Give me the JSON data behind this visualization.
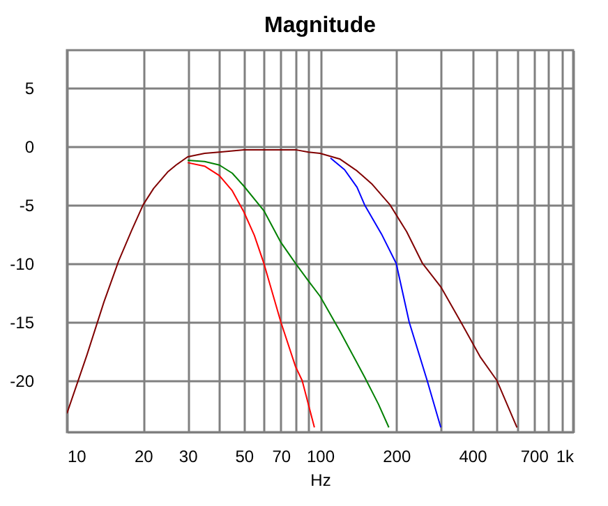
{
  "chart_data": {
    "type": "line",
    "title": "Magnitude",
    "xlabel": "Hz",
    "log": "x",
    "grid": true,
    "legend": false,
    "xlim": [
      10,
      1000
    ],
    "ylim": [
      -24.4,
      8.2
    ],
    "xticks": [
      10,
      20,
      30,
      {
        "value": 40,
        "label": null
      },
      50,
      {
        "value": 60,
        "label": null
      },
      70,
      {
        "value": 80,
        "label": null
      },
      {
        "value": 90,
        "label": null
      },
      100,
      200,
      {
        "value": 300,
        "label": null
      },
      400,
      {
        "value": 500,
        "label": null
      },
      {
        "value": 600,
        "label": null
      },
      700,
      {
        "value": 800,
        "label": null
      },
      {
        "value": 900,
        "label": null
      },
      {
        "value": 1000,
        "label": "1k"
      }
    ],
    "yticks": [
      5,
      0,
      -5,
      -10,
      -15,
      -20
    ],
    "series": [
      {
        "color": "#ff0000",
        "x": [
          30,
          35,
          40,
          45,
          50,
          55,
          60,
          70,
          80,
          85,
          95
        ],
        "values": [
          -1.4,
          -1.7,
          -2.5,
          -3.8,
          -5.6,
          -7.6,
          -10,
          -15,
          -18.8,
          -20,
          -24
        ]
      },
      {
        "color": "#008000",
        "x": [
          30,
          35,
          40,
          45,
          50,
          60,
          70,
          80,
          90,
          100,
          120,
          150,
          170,
          187
        ],
        "values": [
          -1.2,
          -1.3,
          -1.6,
          -2.3,
          -3.4,
          -5.5,
          -8.2,
          -10,
          -11.5,
          -12.8,
          -15.8,
          -19.7,
          -22,
          -24
        ]
      },
      {
        "color": "#0000ff",
        "x": [
          110,
          125,
          140,
          150,
          175,
          200,
          225,
          265,
          300
        ],
        "values": [
          -1,
          -2,
          -3.5,
          -5,
          -7.5,
          -10,
          -15,
          -20,
          -24
        ]
      },
      {
        "color": "#800000",
        "x": [
          10,
          12,
          14,
          16,
          18,
          20,
          22,
          25,
          27,
          30,
          35,
          40,
          50,
          70,
          80,
          90,
          100,
          120,
          140,
          160,
          189,
          220,
          254,
          300,
          360,
          430,
          500,
          600
        ],
        "values": [
          -22.8,
          -17.8,
          -13.3,
          -9.8,
          -7.2,
          -5.0,
          -3.6,
          -2.2,
          -1.6,
          -0.9,
          -0.6,
          -0.5,
          -0.3,
          -0.3,
          -0.3,
          -0.5,
          -0.6,
          -1.1,
          -2.1,
          -3.2,
          -5,
          -7.3,
          -10,
          -12,
          -15,
          -18,
          -20,
          -24
        ]
      }
    ]
  }
}
